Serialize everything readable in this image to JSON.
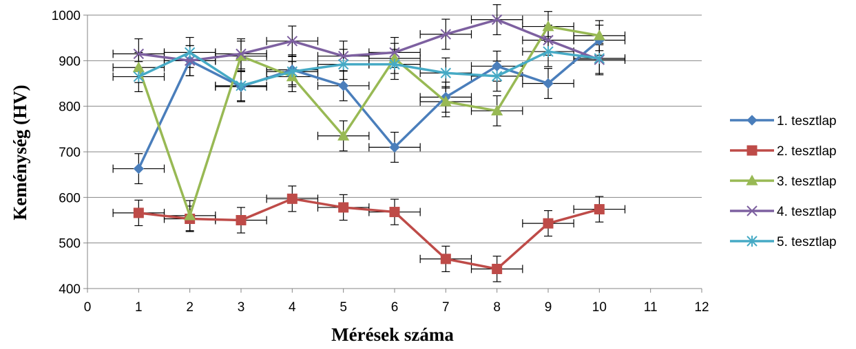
{
  "chart_data": {
    "type": "line",
    "xlabel": "Mérések száma",
    "ylabel": "Keménység (HV)",
    "xlim": [
      0,
      12
    ],
    "ylim": [
      400,
      1000
    ],
    "x_ticks": [
      0,
      1,
      2,
      3,
      4,
      5,
      6,
      7,
      8,
      9,
      10,
      11,
      12
    ],
    "y_ticks": [
      400,
      500,
      600,
      700,
      800,
      900,
      1000
    ],
    "x": [
      1,
      2,
      3,
      4,
      5,
      6,
      7,
      8,
      9,
      10
    ],
    "grid": "horizontal major gridlines",
    "legend_position": "right",
    "error_bars": {
      "y_error": 33,
      "x_error": 0.5,
      "note_y_error_red": 28
    },
    "series": [
      {
        "name": "1. tesztlap",
        "color": "#4A7EBB",
        "marker": "diamond",
        "values": [
          663,
          900,
          843,
          880,
          845,
          710,
          820,
          888,
          850,
          945
        ]
      },
      {
        "name": "2. tesztlap",
        "color": "#BE4B48",
        "marker": "square",
        "values": [
          566,
          553,
          550,
          597,
          578,
          568,
          465,
          443,
          543,
          574
        ]
      },
      {
        "name": "3. tesztlap",
        "color": "#98B954",
        "marker": "triangle",
        "values": [
          885,
          560,
          910,
          865,
          735,
          905,
          810,
          790,
          975,
          955
        ]
      },
      {
        "name": "4. tesztlap",
        "color": "#7D60A0",
        "marker": "x",
        "values": [
          915,
          900,
          915,
          943,
          910,
          918,
          958,
          990,
          945,
          902
        ]
      },
      {
        "name": "5. tesztlap",
        "color": "#46AAC5",
        "marker": "star",
        "values": [
          865,
          918,
          845,
          876,
          892,
          892,
          873,
          866,
          920,
          905
        ]
      }
    ]
  }
}
